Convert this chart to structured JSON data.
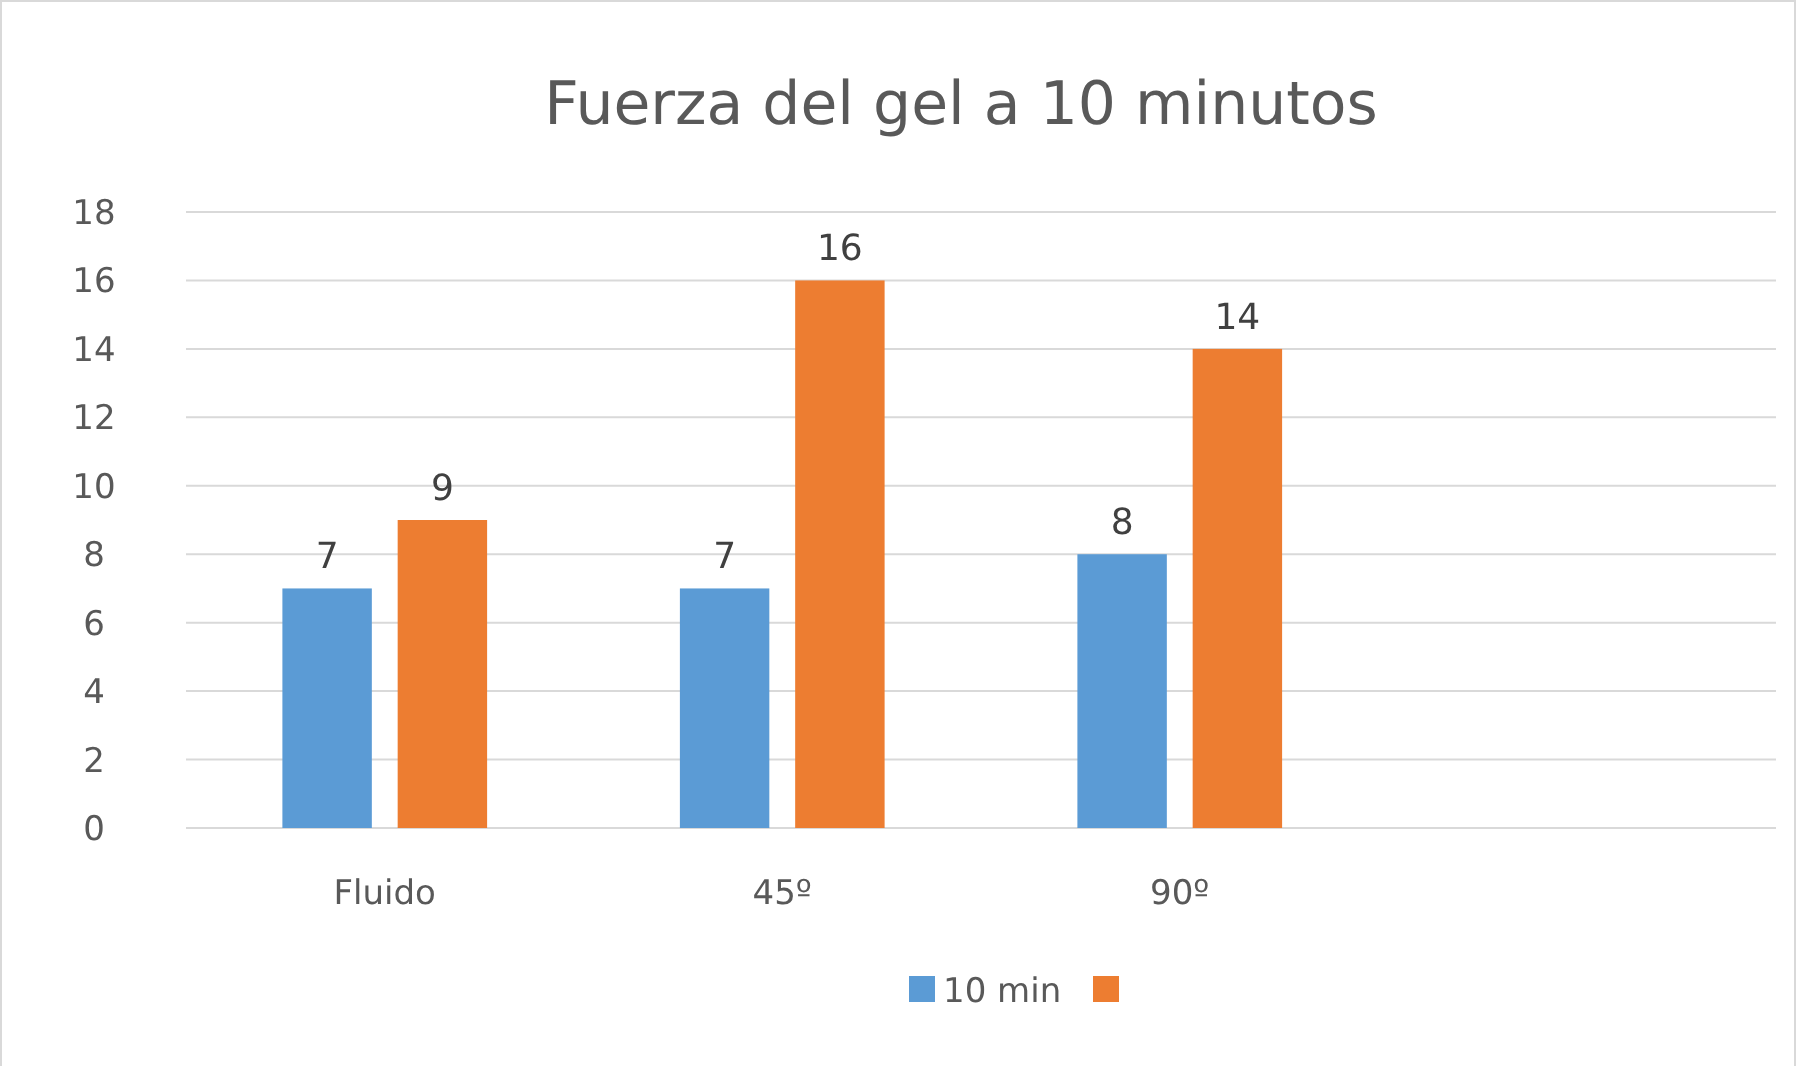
{
  "chart_data": {
    "type": "bar",
    "title": "Fuerza del gel a 10 minutos",
    "categories": [
      "Fluido",
      "45º",
      "90º",
      null
    ],
    "series": [
      {
        "name": "10 min",
        "color": "#5b9bd5",
        "values": [
          7,
          7,
          8,
          null
        ]
      },
      {
        "color": "#ed7d31",
        "values": [
          9,
          16,
          14,
          null
        ]
      }
    ],
    "ylim": [
      0,
      18
    ],
    "yticks": [
      0,
      2,
      4,
      6,
      8,
      10,
      12,
      14,
      16,
      18
    ],
    "grid": "y",
    "data_labels": true,
    "legend": "bottom"
  }
}
